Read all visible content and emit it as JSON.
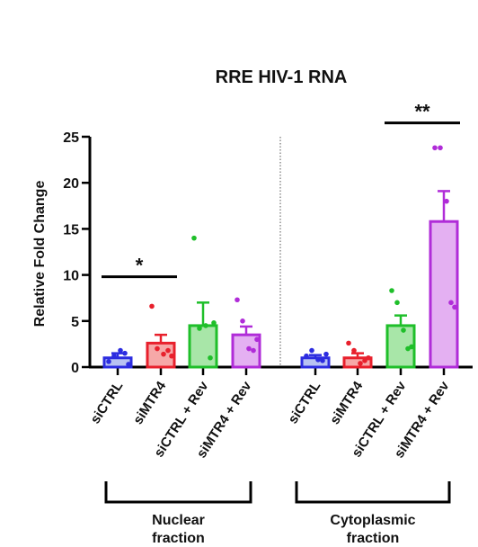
{
  "chart_data": {
    "type": "bar",
    "title": "RRE HIV-1 RNA",
    "xlabel": "",
    "ylabel": "Relative Fold Change",
    "ylim": [
      0,
      25
    ],
    "yticks": [
      0,
      5,
      10,
      15,
      20,
      25
    ],
    "grid": false,
    "categories": [
      "siCTRL",
      "siMTR4",
      "siCTRL + Rev",
      "siMTR4 + Rev",
      "siCTRL",
      "siMTR4",
      "siCTRL + Rev",
      "siMTR4 + Rev"
    ],
    "values": [
      1.0,
      2.6,
      4.5,
      3.5,
      1.0,
      1.0,
      4.5,
      15.8
    ],
    "error": [
      0.5,
      0.9,
      2.5,
      0.9,
      0.3,
      0.5,
      1.1,
      3.3
    ],
    "colors": [
      "#2c2ce0",
      "#e8202c",
      "#1fbf2a",
      "#b02cd8",
      "#2c2ce0",
      "#e8202c",
      "#1fbf2a",
      "#b02cd8"
    ],
    "fills": [
      "#b8c2f2",
      "#f6a8a8",
      "#a8e6a8",
      "#e4b0f2",
      "#b8c2f2",
      "#f6a8a8",
      "#a8e6a8",
      "#e4b0f2"
    ],
    "points": [
      [
        0.6,
        1.2,
        1.8,
        1.5,
        0.3
      ],
      [
        6.6,
        2.0,
        1.4,
        1.8,
        1.2
      ],
      [
        14.0,
        4.2,
        4.5,
        1.0,
        4.8
      ],
      [
        7.3,
        5.0,
        2.0,
        1.8,
        3.0
      ],
      [
        1.2,
        1.8,
        0.8,
        0.7,
        1.4
      ],
      [
        2.6,
        1.8,
        0.4,
        0.7,
        1.0
      ],
      [
        8.3,
        7.0,
        4.0,
        2.0,
        2.2
      ],
      [
        23.8,
        23.8,
        18.0,
        7.0,
        6.5
      ]
    ],
    "groups": [
      {
        "label": "Nuclear fraction",
        "lines": [
          "Nuclear",
          "fraction"
        ],
        "from": 0,
        "to": 3
      },
      {
        "label": "Cytoplasmic fraction",
        "lines": [
          "Cytoplasmic",
          "fraction"
        ],
        "from": 4,
        "to": 7
      }
    ],
    "significance": [
      {
        "label": "*",
        "from": 0,
        "to": 1,
        "y": 9.8
      },
      {
        "label": "**",
        "from": 6,
        "to": 7,
        "y": 26.5
      }
    ],
    "divider": "dotted vertical line between groups"
  }
}
